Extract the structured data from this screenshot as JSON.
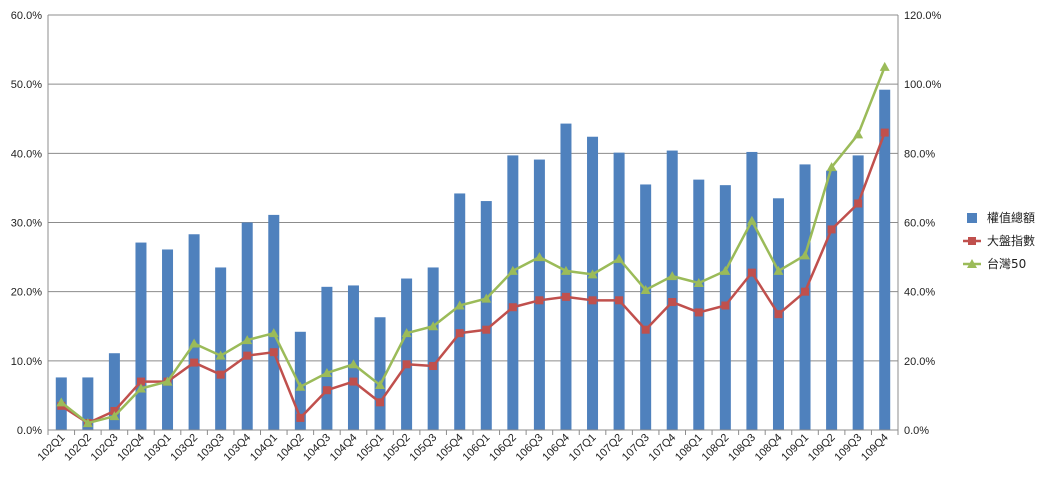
{
  "chart_data": {
    "type": "bar",
    "title": "",
    "xlabel": "",
    "ylabel": "",
    "categories": [
      "102Q1",
      "102Q2",
      "102Q3",
      "102Q4",
      "103Q1",
      "103Q2",
      "103Q3",
      "103Q4",
      "104Q1",
      "104Q2",
      "104Q3",
      "104Q4",
      "105Q1",
      "105Q2",
      "105Q3",
      "105Q4",
      "106Q1",
      "106Q2",
      "106Q3",
      "106Q4",
      "107Q1",
      "107Q2",
      "107Q3",
      "107Q4",
      "108Q1",
      "108Q2",
      "108Q3",
      "108Q4",
      "109Q1",
      "109Q2",
      "109Q3",
      "109Q4"
    ],
    "ylim": [
      0,
      60
    ],
    "y_ticks": [
      "0.0%",
      "10.0%",
      "20.0%",
      "30.0%",
      "40.0%",
      "50.0%",
      "60.0%"
    ],
    "y2lim": [
      0,
      120
    ],
    "y2_ticks": [
      "0.0%",
      "20.0%",
      "40.0%",
      "60.0%",
      "80.0%",
      "100.0%",
      "120.0%"
    ],
    "grid": true,
    "legend_position": "right",
    "series": [
      {
        "name": "權值總額",
        "type": "bar",
        "axis": "left",
        "color": "#4f81bd",
        "values": [
          7.6,
          7.6,
          11.1,
          27.1,
          26.1,
          28.3,
          23.5,
          30.0,
          31.1,
          14.2,
          20.7,
          20.9,
          16.3,
          21.9,
          23.5,
          34.2,
          33.1,
          39.7,
          39.1,
          44.3,
          42.4,
          40.1,
          35.5,
          40.4,
          36.2,
          35.4,
          40.2,
          33.5,
          38.4,
          37.5,
          39.7,
          49.2
        ]
      },
      {
        "name": "大盤指數",
        "type": "line",
        "axis": "right",
        "color": "#c0504d",
        "marker": "square",
        "values": [
          7.0,
          2.0,
          5.5,
          14.0,
          14.0,
          19.5,
          16.0,
          21.5,
          22.5,
          3.5,
          11.5,
          14.0,
          8.0,
          19.0,
          18.5,
          28.0,
          29.0,
          35.5,
          37.5,
          38.5,
          37.5,
          37.5,
          29.0,
          37.0,
          34.0,
          36.0,
          45.5,
          33.5,
          40.0,
          58.0,
          65.5,
          86.0
        ]
      },
      {
        "name": "台灣50",
        "type": "line",
        "axis": "right",
        "color": "#9bbb59",
        "marker": "triangle",
        "values": [
          8.0,
          2.0,
          4.0,
          12.0,
          14.0,
          25.0,
          21.5,
          26.0,
          28.0,
          12.5,
          16.5,
          19.0,
          13.0,
          28.0,
          30.0,
          36.0,
          38.0,
          46.0,
          50.0,
          46.0,
          45.0,
          49.5,
          40.5,
          44.5,
          42.5,
          46.0,
          60.5,
          46.0,
          50.5,
          76.0,
          85.5,
          105.0
        ]
      }
    ]
  }
}
